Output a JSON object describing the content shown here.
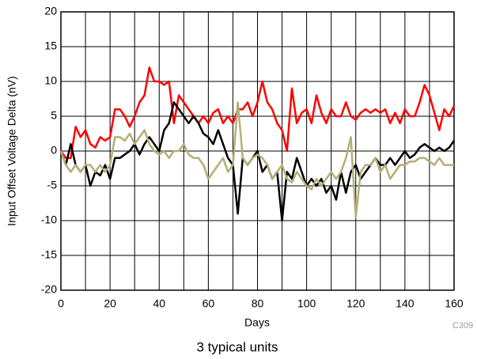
{
  "chart_data": {
    "type": "line",
    "xlabel": "Days",
    "ylabel": "Input Offset Voltage Delta (nV)",
    "figure_code": "C309",
    "caption": "3 typical units",
    "x": [
      0,
      2,
      4,
      6,
      8,
      10,
      12,
      14,
      16,
      18,
      20,
      22,
      24,
      26,
      28,
      30,
      32,
      34,
      36,
      38,
      40,
      42,
      44,
      46,
      48,
      50,
      52,
      54,
      56,
      58,
      60,
      62,
      64,
      66,
      68,
      70,
      72,
      74,
      76,
      78,
      80,
      82,
      84,
      86,
      88,
      90,
      92,
      94,
      96,
      98,
      100,
      102,
      104,
      106,
      108,
      110,
      112,
      114,
      116,
      118,
      120,
      122,
      124,
      126,
      128,
      130,
      132,
      134,
      136,
      138,
      140,
      142,
      144,
      146,
      148,
      150,
      152,
      154,
      156,
      158,
      160
    ],
    "series": [
      {
        "color": "#ff0000",
        "values": [
          0,
          -1,
          -1,
          3.5,
          2,
          3,
          1,
          0.5,
          2,
          1.5,
          2,
          6,
          6,
          5,
          3.5,
          5,
          7,
          8,
          12,
          10,
          10,
          9.5,
          10,
          4,
          8,
          7,
          6,
          5,
          4,
          5,
          4,
          5.5,
          6,
          4,
          5,
          4,
          6,
          6,
          7,
          5,
          7,
          10,
          7,
          6,
          4,
          3,
          0,
          9,
          4,
          5.5,
          6,
          4,
          8,
          5.5,
          4,
          6,
          5,
          5,
          7,
          5,
          4.5,
          5.5,
          6,
          5.5,
          6,
          5.5,
          6,
          4,
          5.5,
          4,
          6,
          5,
          5,
          7,
          9.5,
          8,
          5.5,
          3,
          6,
          5,
          6.5
        ]
      },
      {
        "color": "#000000",
        "values": [
          0,
          -2,
          1,
          -2,
          -3,
          -2,
          -5,
          -3,
          -3.5,
          -2,
          -4,
          -1,
          -1,
          -0.5,
          0,
          1,
          -0.5,
          1,
          2,
          1,
          0,
          3,
          4,
          7,
          6,
          5,
          4,
          5,
          4,
          2.5,
          2,
          1,
          3,
          1,
          -1,
          -2,
          -9,
          -1,
          -2,
          -1,
          0,
          -3,
          -2,
          -4,
          -3,
          -10,
          -3,
          -4,
          -1,
          -3,
          -5,
          -4,
          -5,
          -4,
          -6,
          -5,
          -7,
          -3,
          -6,
          -3,
          -2,
          -4,
          -3,
          -2,
          -1,
          -2,
          -2,
          -1,
          -2,
          -1,
          0,
          -1,
          -0.5,
          0.5,
          1,
          0.5,
          0,
          0.5,
          0,
          0.5,
          1.5
        ]
      },
      {
        "color": "#b3af78",
        "values": [
          0,
          -2,
          -3,
          -2,
          -3,
          -2,
          -2,
          -3,
          -2,
          -3,
          -2,
          2,
          2,
          1.5,
          2.5,
          1,
          2,
          3,
          1,
          0,
          -0.5,
          0,
          -1,
          0,
          0,
          1,
          -0.5,
          -1,
          -1,
          -2,
          -4,
          -3,
          -2,
          -1,
          -3,
          -2,
          7,
          -1,
          -2,
          -1,
          -0.5,
          -1,
          -2,
          -4,
          -3,
          -2,
          -4,
          -4.5,
          -3,
          -4,
          -5,
          -5.5,
          -4,
          -5,
          -4,
          -3,
          -4,
          -3,
          -1,
          2,
          -9.5,
          -3,
          -2,
          -2,
          -1,
          -3,
          -2,
          -4,
          -3,
          -2,
          -2,
          -1.5,
          -1.5,
          -1,
          -1,
          -1.5,
          -2,
          -1,
          -2,
          -2,
          -2
        ]
      }
    ],
    "xlim": [
      0,
      160
    ],
    "xticks": [
      0,
      20,
      40,
      60,
      80,
      100,
      120,
      140,
      160
    ],
    "ylim": [
      -20,
      20
    ],
    "yticks": [
      -20,
      -15,
      -10,
      -5,
      0,
      5,
      10,
      15,
      20
    ],
    "grid": true
  }
}
